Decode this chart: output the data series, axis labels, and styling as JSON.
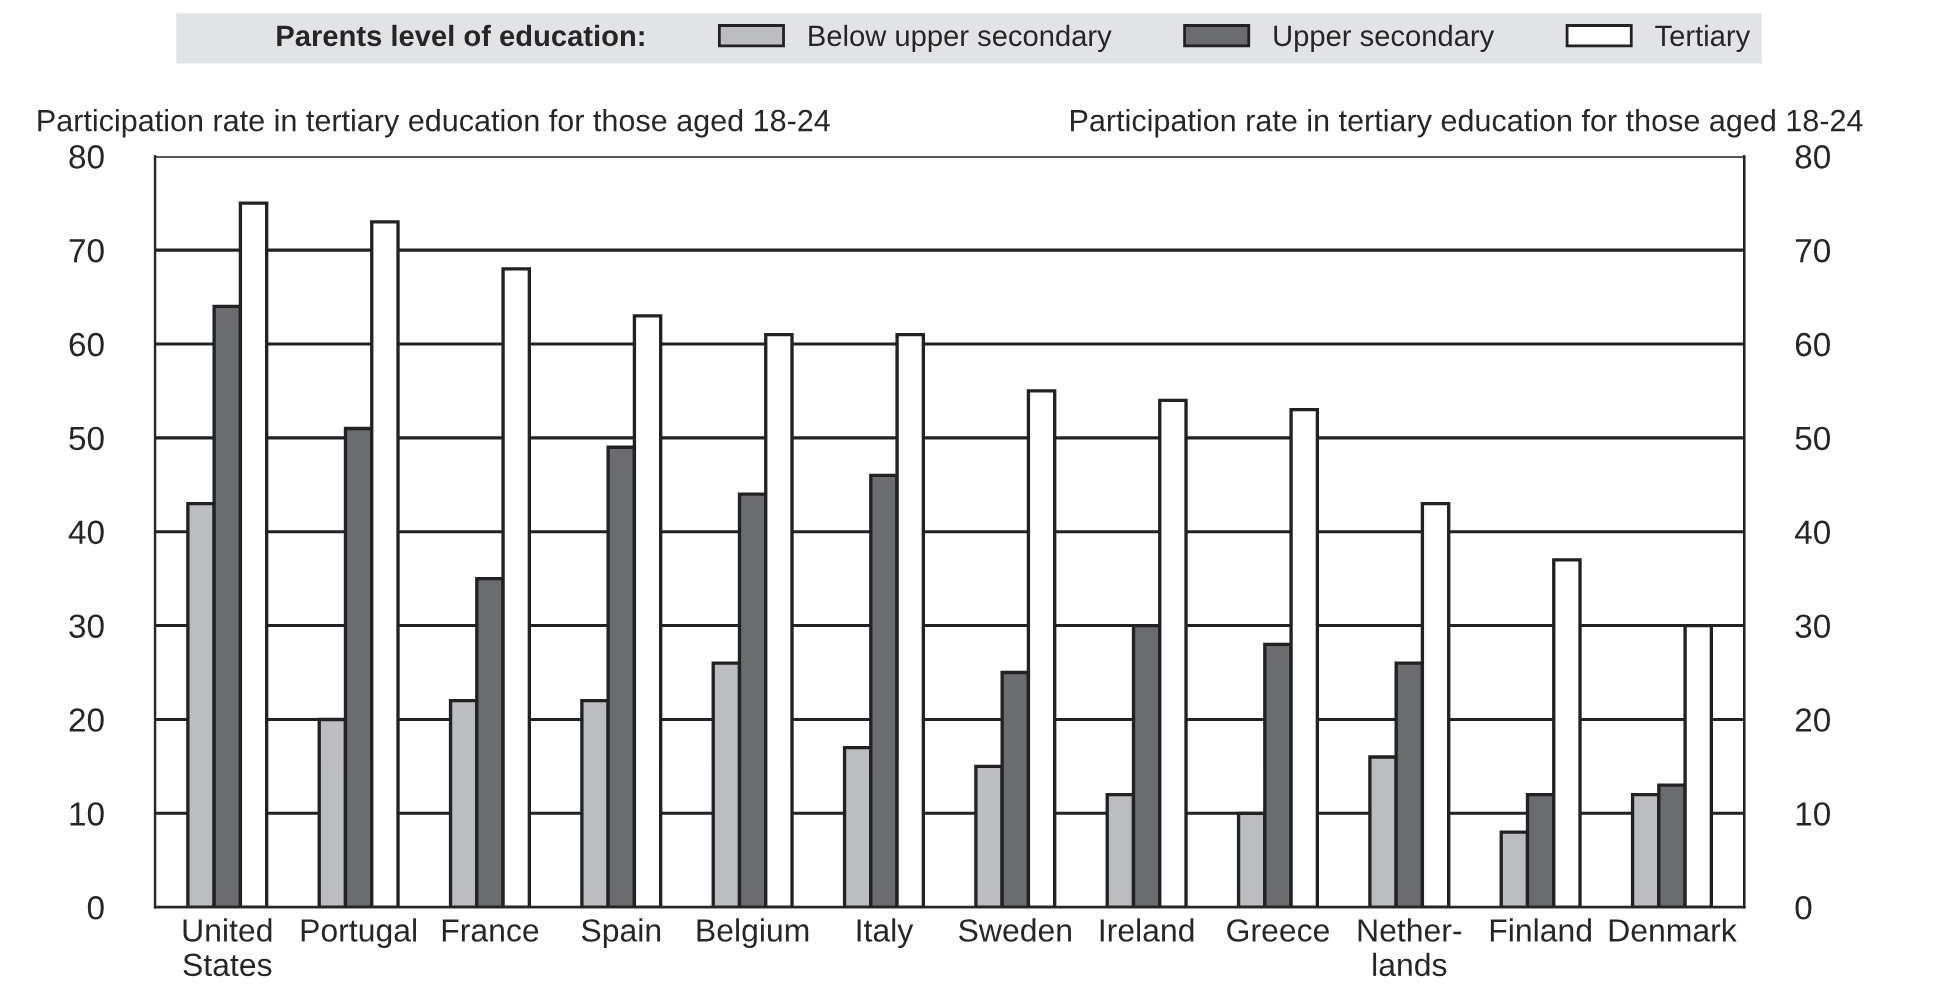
{
  "chart_data": {
    "type": "bar",
    "ylabel": "Participation rate in tertiary education for those aged 18-24",
    "y2label": "Participation rate in tertiary education for those aged 18-24",
    "legend_title": "Parents level of education:",
    "categories": [
      "United\nStates",
      "Portugal",
      "France",
      "Spain",
      "Belgium",
      "Italy",
      "Sweden",
      "Ireland",
      "Greece",
      "Nether-\nlands",
      "Finland",
      "Denmark"
    ],
    "series": [
      {
        "name": "Below upper secondary",
        "color": "#bcbdc1",
        "values": [
          43,
          20,
          22,
          22,
          26,
          17,
          15,
          12,
          10,
          16,
          8,
          12
        ]
      },
      {
        "name": "Upper secondary",
        "color": "#6b6c70",
        "values": [
          64,
          51,
          35,
          49,
          44,
          46,
          25,
          30,
          28,
          26,
          12,
          13
        ]
      },
      {
        "name": "Tertiary",
        "color": "#ffffff",
        "values": [
          75,
          73,
          68,
          63,
          61,
          61,
          55,
          54,
          53,
          43,
          37,
          30
        ]
      }
    ],
    "ylim": [
      0,
      80
    ],
    "yticks": [
      0,
      10,
      20,
      30,
      40,
      50,
      60,
      70,
      80
    ],
    "y2lim": [
      0,
      80
    ],
    "y2ticks": [
      0,
      10,
      20,
      30,
      40,
      50,
      60,
      70,
      80
    ],
    "grid": "y",
    "legend": "top"
  }
}
